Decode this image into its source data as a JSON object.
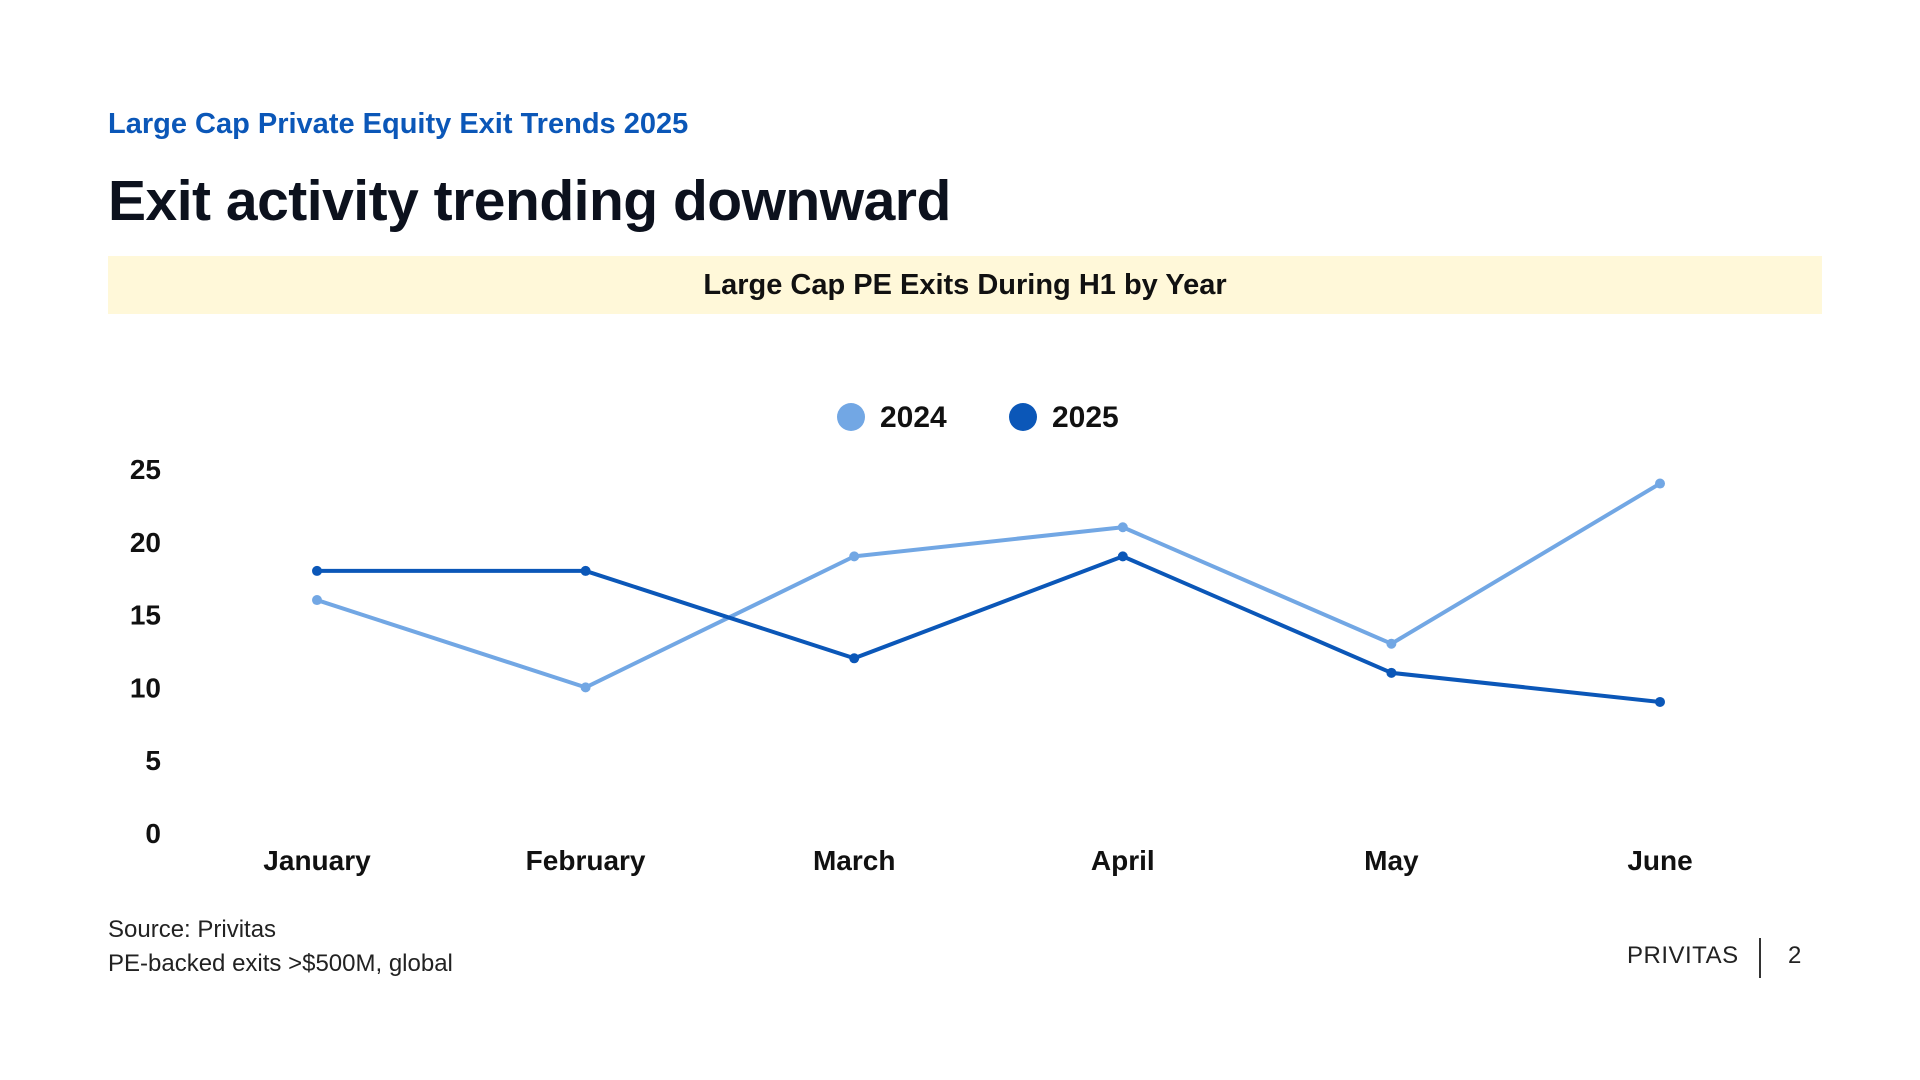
{
  "slide": {
    "eyebrow": "Large Cap Private Equity Exit Trends 2025",
    "headline": "Exit activity trending downward",
    "source_line1": "Source: Privitas",
    "source_line2": "PE-backed exits >$500M, global",
    "brand": "PRIVITAS",
    "page_number": "2"
  },
  "chart_data": {
    "type": "line",
    "title": "Large Cap PE Exits During H1 by Year",
    "categories": [
      "January",
      "February",
      "March",
      "April",
      "May",
      "June"
    ],
    "series": [
      {
        "name": "2024",
        "color": "#72a7e4",
        "values": [
          16,
          10,
          19,
          21,
          13,
          24
        ]
      },
      {
        "name": "2025",
        "color": "#0b57b8",
        "values": [
          18,
          18,
          12,
          19,
          11,
          9
        ]
      }
    ],
    "ylim": [
      0,
      25
    ],
    "yticks": [
      0,
      5,
      10,
      15,
      20,
      25
    ],
    "xlabel": "",
    "ylabel": "",
    "grid": false,
    "legend_position": "top-center"
  }
}
